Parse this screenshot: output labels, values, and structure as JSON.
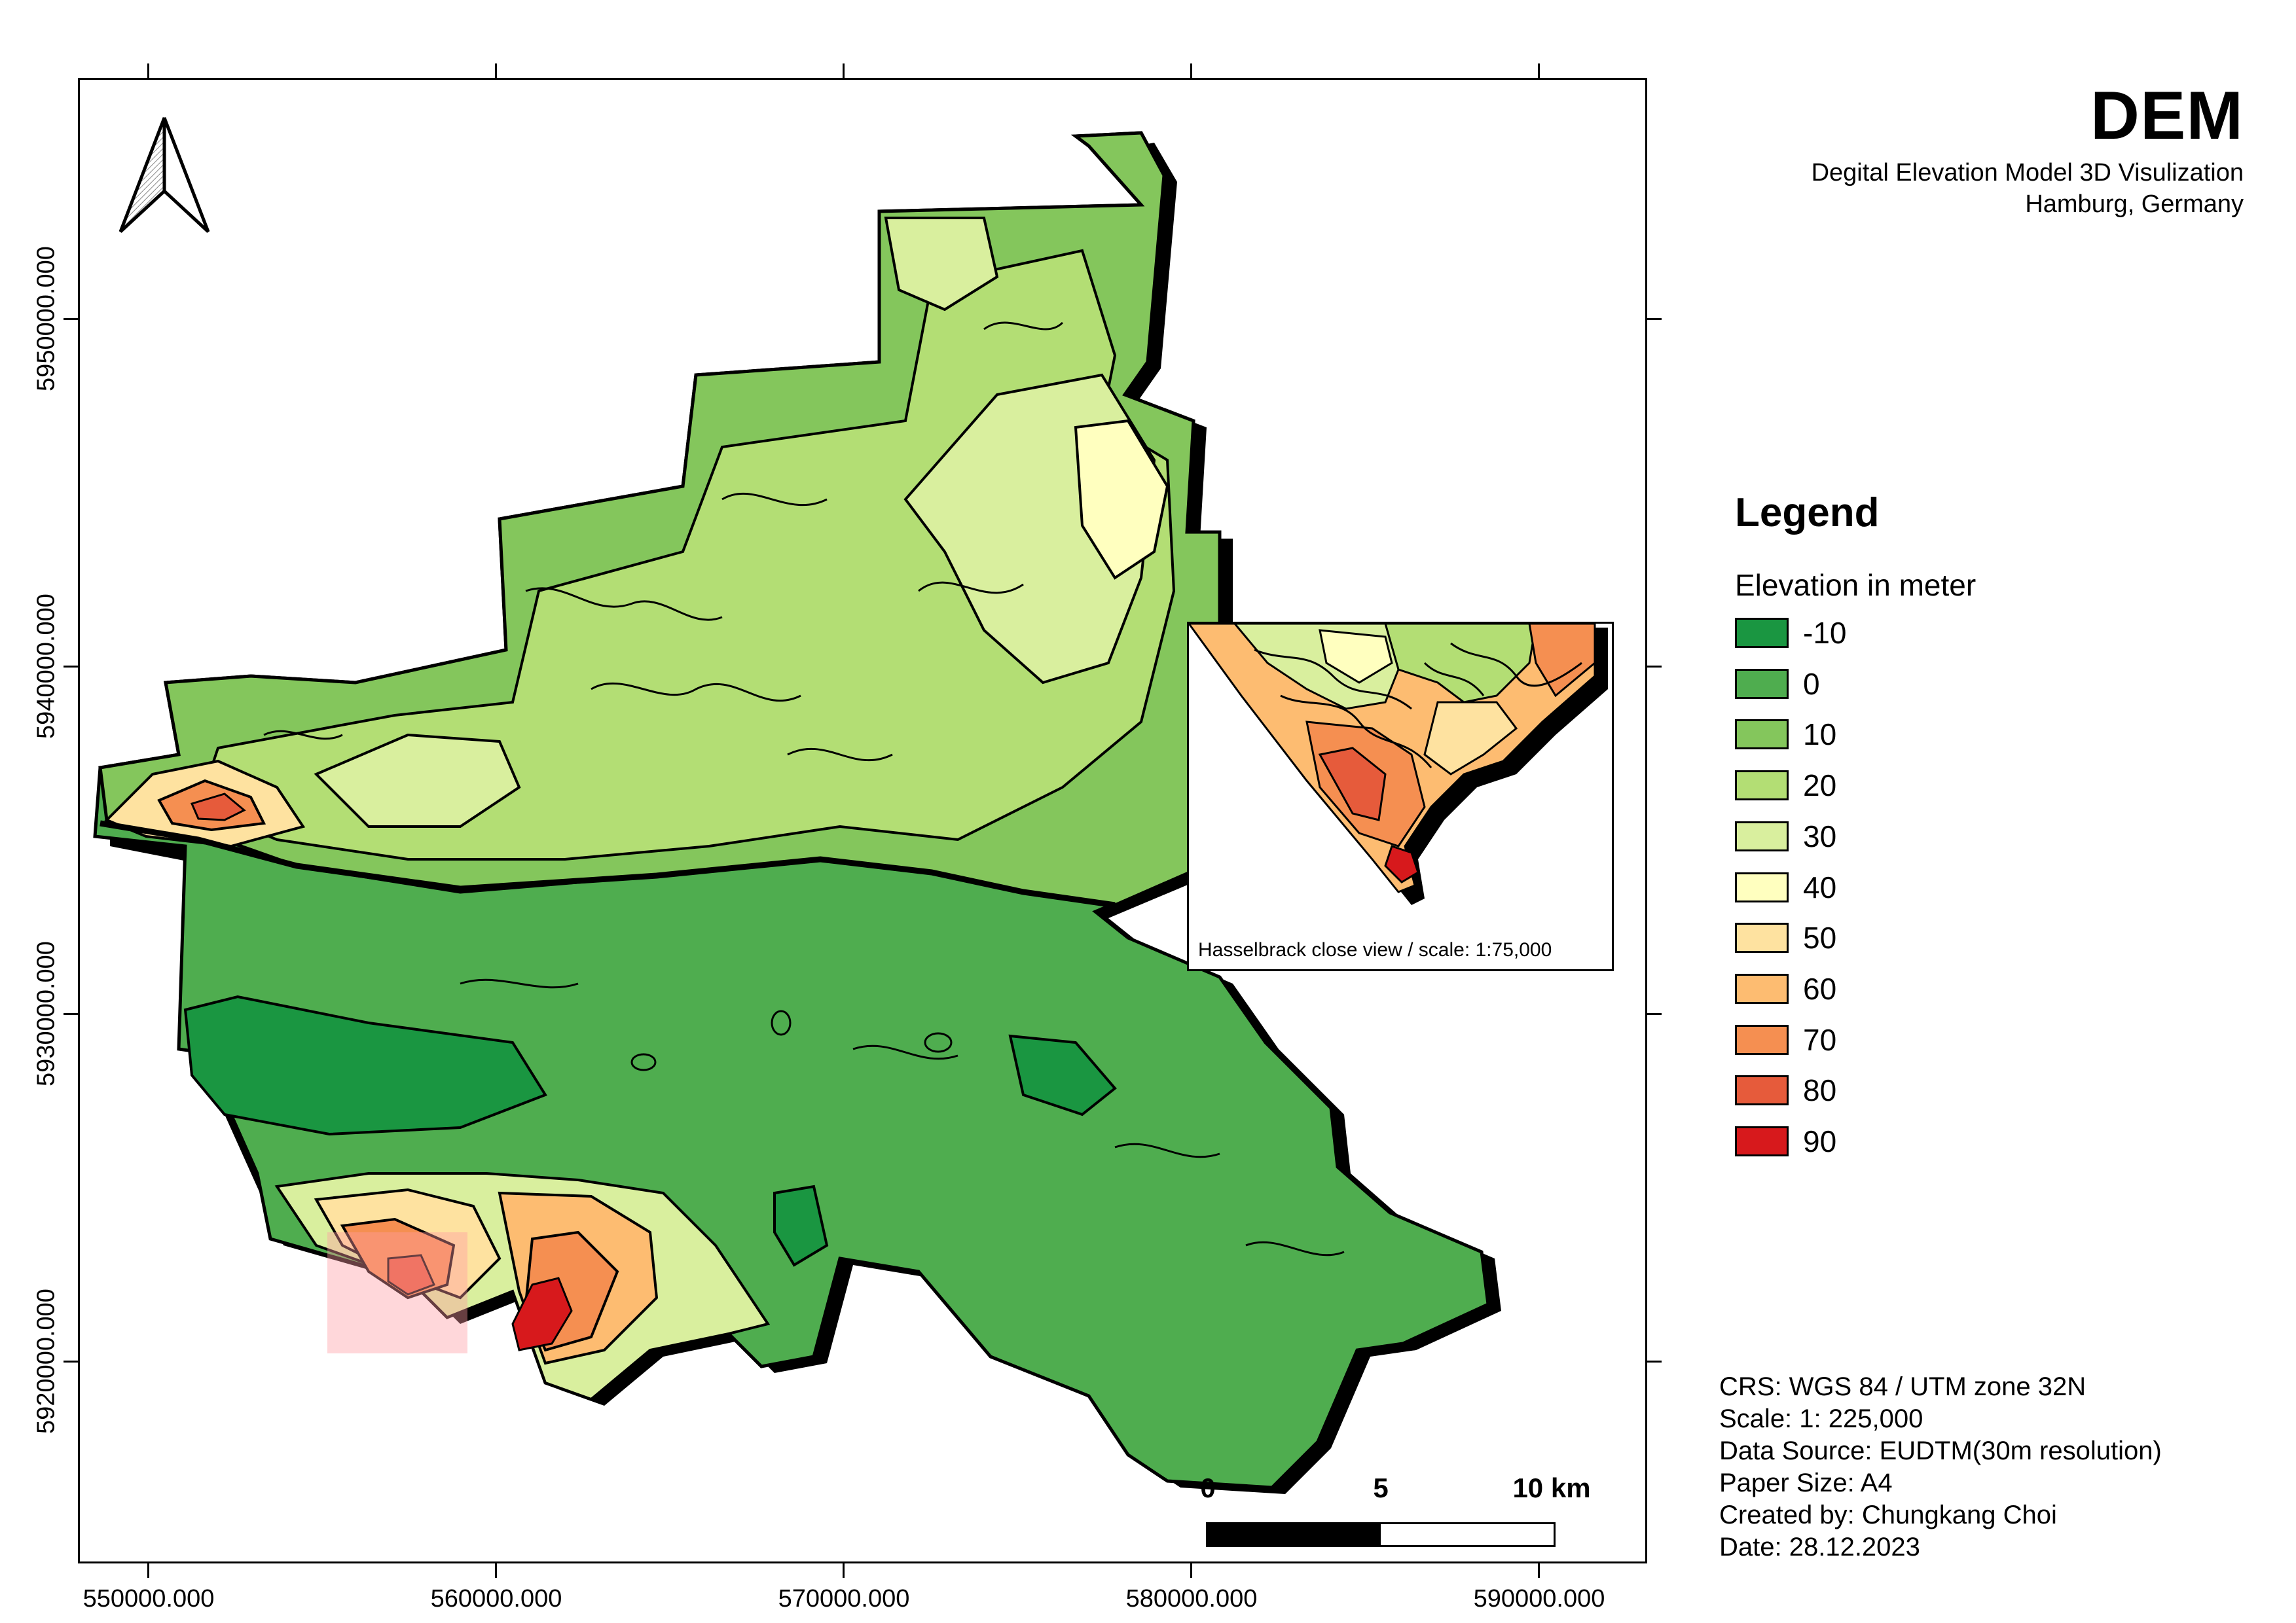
{
  "title": "DEM",
  "subtitle_line1": "Degital Elevation Model 3D Visulization",
  "subtitle_line2": "Hamburg, Germany",
  "legend": {
    "title": "Legend",
    "subtitle": "Elevation in meter",
    "items": [
      {
        "label": "-10",
        "color": "#1a9641"
      },
      {
        "label": "0",
        "color": "#4fad4f"
      },
      {
        "label": "10",
        "color": "#84c65c"
      },
      {
        "label": "20",
        "color": "#b3de74"
      },
      {
        "label": "30",
        "color": "#d9ef9e"
      },
      {
        "label": "40",
        "color": "#ffffbf"
      },
      {
        "label": "50",
        "color": "#fee2a0"
      },
      {
        "label": "60",
        "color": "#fdbc71"
      },
      {
        "label": "70",
        "color": "#f58f51"
      },
      {
        "label": "80",
        "color": "#e65b3b"
      },
      {
        "label": "90",
        "color": "#d7191c"
      }
    ]
  },
  "axes": {
    "x_labels": [
      "550000.000",
      "560000.000",
      "570000.000",
      "580000.000",
      "590000.000"
    ],
    "y_labels": [
      "5950000.000",
      "5940000.000",
      "5930000.000",
      "5920000.000"
    ]
  },
  "inset": {
    "caption": "Hasselbrack close view / scale: 1:75,000"
  },
  "scale_bar": {
    "labels": [
      "0",
      "5",
      "10 km"
    ]
  },
  "metadata": {
    "crs": "CRS: WGS 84 / UTM zone 32N",
    "scale": "Scale: 1: 225,000",
    "source": "Data Source: EUDTM(30m resolution)",
    "paper": "Paper Size: A4",
    "author": "Created by: Chungkang Choi",
    "date": "Date: 28.12.2023"
  }
}
